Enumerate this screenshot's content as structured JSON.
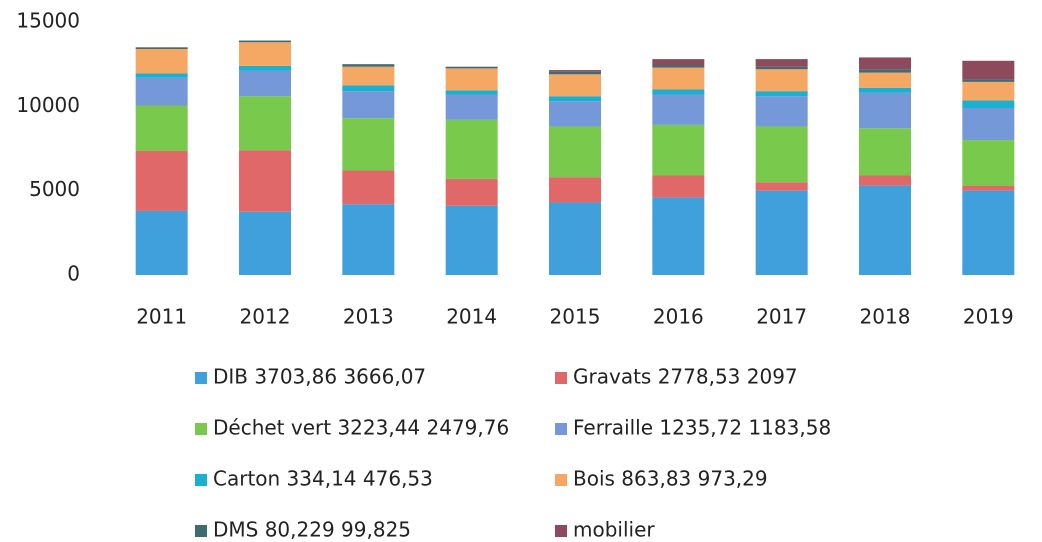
{
  "chart_data": {
    "type": "stacked_bar",
    "categories": [
      "2011",
      "2012",
      "2013",
      "2014",
      "2015",
      "2016",
      "2017",
      "2018",
      "2019"
    ],
    "ylim": [
      0,
      15000
    ],
    "yticks": [
      0,
      5000,
      10000,
      15000
    ],
    "grid": false,
    "series": [
      {
        "name": "DIB 3703,86 3666,07",
        "color": "#3fa0dc",
        "values": [
          3800,
          3750,
          4200,
          4100,
          4300,
          4600,
          5000,
          5300,
          5000
        ]
      },
      {
        "name": "Gravats 2778,53 2097",
        "color": "#e06868",
        "values": [
          3550,
          3650,
          2000,
          1600,
          1500,
          1300,
          500,
          600,
          300
        ]
      },
      {
        "name": "Déchet vert 3223,44 2479,76",
        "color": "#78c94c",
        "values": [
          2700,
          3200,
          3100,
          3500,
          3000,
          3000,
          3300,
          2800,
          2700
        ]
      },
      {
        "name": "Ferraille 1235,72 1183,58",
        "color": "#7598d8",
        "values": [
          1650,
          1500,
          1600,
          1500,
          1500,
          1800,
          1800,
          2100,
          1900
        ]
      },
      {
        "name": "Carton 334,14 476,53",
        "color": "#1bb0d0",
        "values": [
          250,
          300,
          350,
          250,
          300,
          300,
          300,
          300,
          450
        ]
      },
      {
        "name": "Bois 863,83 973,29",
        "color": "#f5a764",
        "values": [
          1450,
          1400,
          1100,
          1300,
          1300,
          1300,
          1300,
          900,
          1100
        ]
      },
      {
        "name": "DMS 80,229 99,825",
        "color": "#3f6b72",
        "values": [
          100,
          100,
          150,
          100,
          150,
          150,
          150,
          200,
          150
        ]
      },
      {
        "name": "mobilier",
        "color": "#8c4a5c",
        "values": [
          0,
          0,
          0,
          0,
          100,
          350,
          450,
          700,
          1100
        ]
      }
    ]
  }
}
